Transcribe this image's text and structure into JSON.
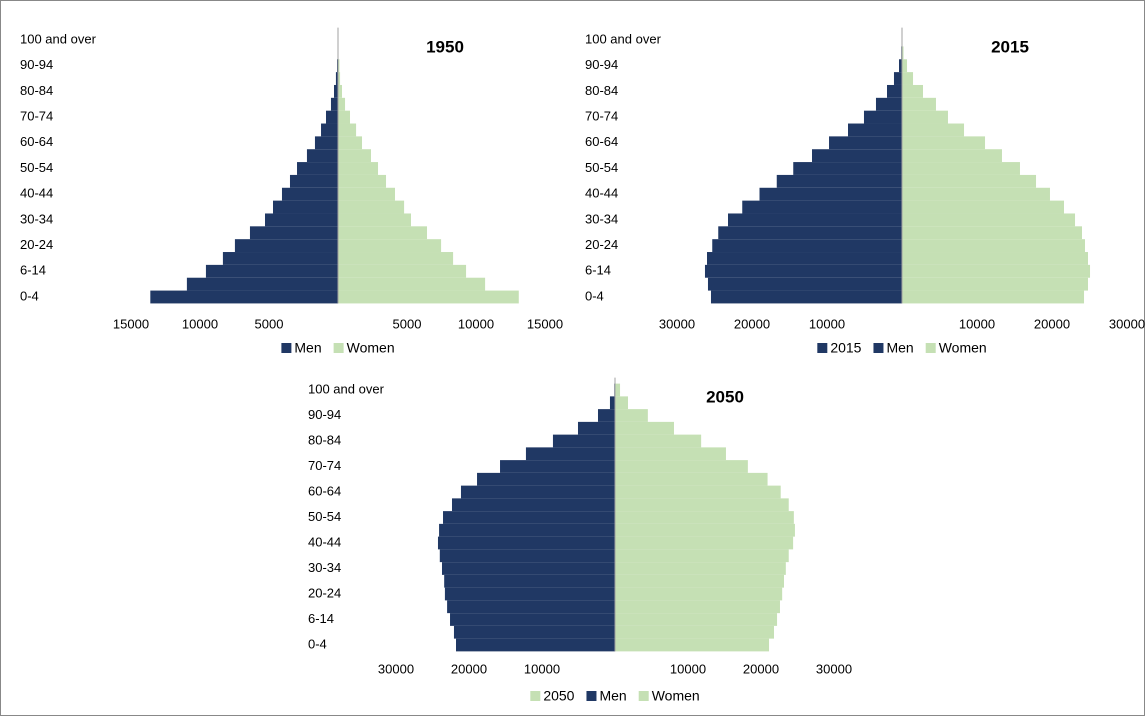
{
  "chart_data": [
    {
      "type": "pyramid",
      "title": "1950",
      "categories": [
        "0-4",
        null,
        "6-14",
        null,
        "20-24",
        null,
        "30-34",
        null,
        "40-44",
        null,
        "50-54",
        null,
        "60-64",
        null,
        "70-74",
        null,
        "80-84",
        null,
        "90-94",
        null,
        "100 and over"
      ],
      "series": [
        {
          "name": "Men",
          "color": "#203864",
          "values": [
            -13600,
            -10950,
            -9570,
            -8340,
            -7470,
            -6380,
            -5290,
            -4710,
            -4060,
            -3480,
            -2970,
            -2250,
            -1670,
            -1230,
            -870,
            -510,
            -290,
            -150,
            -70,
            -20,
            -5
          ]
        },
        {
          "name": "Women",
          "color": "#c5e0b4",
          "values": [
            13100,
            10660,
            9280,
            8340,
            7470,
            6450,
            5290,
            4790,
            4130,
            3480,
            2900,
            2390,
            1740,
            1310,
            870,
            510,
            290,
            150,
            100,
            30,
            10
          ]
        }
      ],
      "xlim": [
        -15000,
        15000
      ],
      "xticks": [
        {
          "value": -15000,
          "label": "15000"
        },
        {
          "value": -10000,
          "label": "10000"
        },
        {
          "value": -5000,
          "label": "5000"
        },
        5000,
        10000,
        15000
      ],
      "legend": "bottom"
    },
    {
      "type": "pyramid",
      "title": "2015",
      "categories": [
        "0-4",
        null,
        "6-14",
        null,
        "20-24",
        null,
        "30-34",
        null,
        "40-44",
        null,
        "50-54",
        null,
        "60-64",
        null,
        "70-74",
        null,
        "80-84",
        null,
        "90-94",
        null,
        "100 and over"
      ],
      "series": [
        {
          "name": "2015",
          "color": "#203864",
          "values": [
            null,
            null,
            null,
            null,
            null,
            null,
            null,
            null,
            null,
            null,
            null,
            null,
            null,
            null,
            null,
            null,
            null,
            null,
            null,
            null,
            null
          ]
        },
        {
          "name": "Men",
          "color": "#203864",
          "values": [
            -25470,
            -25870,
            -26270,
            -26000,
            -25300,
            -24500,
            -23200,
            -21300,
            -19000,
            -16700,
            -14500,
            -12000,
            -9730,
            -7200,
            -5070,
            -3470,
            -2000,
            -1070,
            -400,
            -100,
            -10
          ]
        },
        {
          "name": "Women",
          "color": "#c5e0b4",
          "values": [
            24270,
            24800,
            25070,
            24800,
            24400,
            24000,
            23070,
            21600,
            19730,
            17870,
            15730,
            13330,
            11070,
            8270,
            6130,
            4530,
            2800,
            1470,
            670,
            200,
            30
          ]
        }
      ],
      "xlim": [
        -30000,
        30000
      ],
      "xticks": [
        {
          "value": -30000,
          "label": "30000"
        },
        {
          "value": -20000,
          "label": "20000"
        },
        {
          "value": -10000,
          "label": "10000"
        },
        10000,
        20000,
        30000
      ],
      "legend": "bottom"
    },
    {
      "type": "pyramid",
      "title": "2050",
      "categories": [
        "0-4",
        null,
        "6-14",
        null,
        "20-24",
        null,
        "30-34",
        null,
        "40-44",
        null,
        "50-54",
        null,
        "60-64",
        null,
        "70-74",
        null,
        "80-84",
        null,
        "90-94",
        null,
        "100 and over"
      ],
      "series": [
        {
          "name": "2050",
          "color": "#c5e0b4",
          "values": [
            null,
            null,
            null,
            null,
            null,
            null,
            null,
            null,
            null,
            null,
            null,
            null,
            null,
            null,
            null,
            null,
            null,
            null,
            null,
            null,
            null
          ]
        },
        {
          "name": "Men",
          "color": "#203864",
          "values": [
            -21780,
            -22060,
            -22600,
            -23000,
            -23300,
            -23400,
            -23700,
            -24000,
            -24250,
            -24100,
            -23560,
            -22330,
            -21100,
            -18900,
            -15750,
            -12200,
            -8500,
            -5070,
            -2330,
            -690,
            -100
          ]
        },
        {
          "name": "Women",
          "color": "#c5e0b4",
          "values": [
            21100,
            21780,
            22200,
            22600,
            22900,
            23150,
            23400,
            23800,
            24400,
            24650,
            24500,
            23800,
            22700,
            20900,
            18200,
            15200,
            11800,
            8080,
            4500,
            1780,
            690
          ]
        }
      ],
      "xlim": [
        -30000,
        30000
      ],
      "xticks": [
        {
          "value": -30000,
          "label": "30000"
        },
        {
          "value": -20000,
          "label": "20000"
        },
        {
          "value": -10000,
          "label": "10000"
        },
        10000,
        20000,
        30000
      ],
      "legend": "bottom"
    }
  ]
}
